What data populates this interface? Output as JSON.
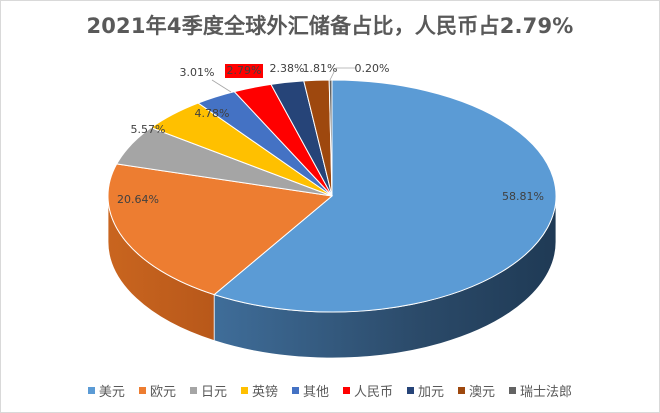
{
  "title": "2021年4季度全球外汇储备占比，人民币占2.79%",
  "chart_data": {
    "type": "pie",
    "style": "3d",
    "title": "2021年4季度全球外汇储备占比，人民币占2.79%",
    "legend_position": "bottom",
    "categories": [
      "美元",
      "欧元",
      "日元",
      "英镑",
      "其他",
      "人民币",
      "加元",
      "澳元",
      "瑞士法郎"
    ],
    "values": [
      58.81,
      20.64,
      5.57,
      4.78,
      3.01,
      2.79,
      2.38,
      1.81,
      0.2
    ],
    "labels": [
      "58.81%",
      "20.64%",
      "5.57%",
      "4.78%",
      "3.01%",
      "2.79%",
      "2.38%",
      "1.81%",
      "0.20%"
    ],
    "colors": [
      "#5b9bd5",
      "#ed7d31",
      "#a5a5a5",
      "#ffc000",
      "#4472c4",
      "#ff0000",
      "#264478",
      "#9e480e",
      "#636363"
    ],
    "highlight": "人民币"
  },
  "legend": [
    {
      "label": "美元",
      "color": "#5b9bd5"
    },
    {
      "label": "欧元",
      "color": "#ed7d31"
    },
    {
      "label": "日元",
      "color": "#a5a5a5"
    },
    {
      "label": "英镑",
      "color": "#ffc000"
    },
    {
      "label": "其他",
      "color": "#4472c4"
    },
    {
      "label": "人民币",
      "color": "#ff0000"
    },
    {
      "label": "加元",
      "color": "#264478"
    },
    {
      "label": "澳元",
      "color": "#9e480e"
    },
    {
      "label": "瑞士法郎",
      "color": "#636363"
    }
  ]
}
